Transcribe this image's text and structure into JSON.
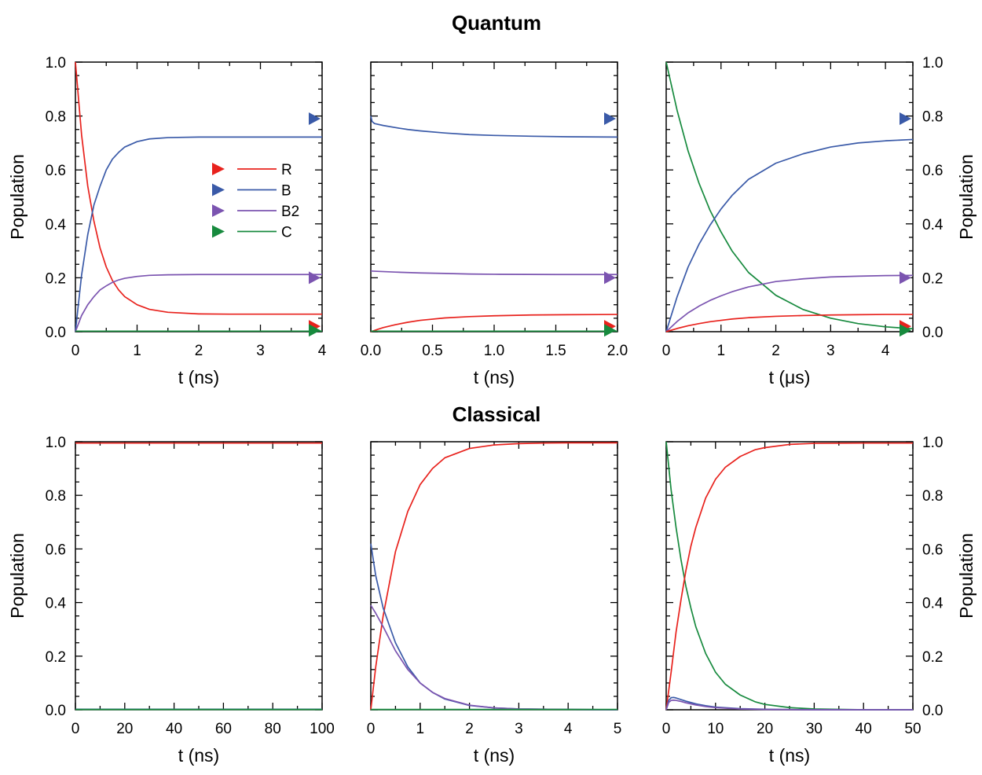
{
  "colors": {
    "R": "#e8221d",
    "B": "#3a5aa8",
    "B2": "#7b54b0",
    "C": "#178a3e",
    "axis": "#000000"
  },
  "quantum": {
    "title": "Quantum"
  },
  "classical": {
    "title": "Classical"
  },
  "legend": [
    {
      "key": "R",
      "label": "R"
    },
    {
      "key": "B",
      "label": "B"
    },
    {
      "key": "B2",
      "label": "B2"
    },
    {
      "key": "C",
      "label": "C"
    }
  ],
  "chart_data": [
    {
      "id": "q1",
      "type": "line",
      "row": "quantum",
      "col": 0,
      "xlabel": "t (ns)",
      "ylabel": "Population",
      "xlim": [
        0,
        4
      ],
      "ylim": [
        0,
        1
      ],
      "xticks": [
        "0",
        "1",
        "2",
        "3",
        "4"
      ],
      "yticks": [
        "0.0",
        "0.2",
        "0.4",
        "0.6",
        "0.8",
        "1.0"
      ],
      "legend": "inside, middle",
      "markers": [
        {
          "key": "B",
          "y": 0.79
        },
        {
          "key": "B2",
          "y": 0.2
        },
        {
          "key": "R",
          "y": 0.02
        },
        {
          "key": "C",
          "y": 0.005
        }
      ],
      "series": [
        {
          "key": "R",
          "x": [
            0,
            0.1,
            0.2,
            0.3,
            0.4,
            0.5,
            0.6,
            0.7,
            0.8,
            1.0,
            1.2,
            1.5,
            2.0,
            2.5,
            3.0,
            4.0
          ],
          "y": [
            1.0,
            0.73,
            0.54,
            0.41,
            0.31,
            0.24,
            0.19,
            0.155,
            0.13,
            0.1,
            0.083,
            0.072,
            0.066,
            0.065,
            0.065,
            0.065
          ]
        },
        {
          "key": "B",
          "x": [
            0,
            0.1,
            0.2,
            0.3,
            0.4,
            0.5,
            0.6,
            0.7,
            0.8,
            1.0,
            1.2,
            1.5,
            2.0,
            2.5,
            3.0,
            4.0
          ],
          "y": [
            0.0,
            0.21,
            0.36,
            0.47,
            0.54,
            0.6,
            0.64,
            0.665,
            0.685,
            0.705,
            0.715,
            0.72,
            0.722,
            0.722,
            0.722,
            0.722
          ]
        },
        {
          "key": "B2",
          "x": [
            0,
            0.1,
            0.2,
            0.3,
            0.4,
            0.5,
            0.6,
            0.7,
            0.8,
            1.0,
            1.2,
            1.5,
            2.0,
            2.5,
            3.0,
            4.0
          ],
          "y": [
            0.0,
            0.06,
            0.1,
            0.13,
            0.155,
            0.17,
            0.183,
            0.192,
            0.198,
            0.205,
            0.209,
            0.211,
            0.212,
            0.212,
            0.212,
            0.212
          ]
        },
        {
          "key": "C",
          "x": [
            0,
            4
          ],
          "y": [
            0.002,
            0.002
          ]
        }
      ]
    },
    {
      "id": "q2",
      "type": "line",
      "row": "quantum",
      "col": 1,
      "xlabel": "t (ns)",
      "ylabel": "",
      "xlim": [
        0,
        2
      ],
      "ylim": [
        0,
        1
      ],
      "xticks": [
        "0.0",
        "0.5",
        "1.0",
        "1.5",
        "2.0"
      ],
      "yticks": [],
      "markers": [
        {
          "key": "B",
          "y": 0.79
        },
        {
          "key": "B2",
          "y": 0.2
        },
        {
          "key": "R",
          "y": 0.02
        },
        {
          "key": "C",
          "y": 0.005
        }
      ],
      "series": [
        {
          "key": "R",
          "x": [
            0,
            0.05,
            0.1,
            0.2,
            0.3,
            0.4,
            0.6,
            0.8,
            1.0,
            1.3,
            1.6,
            2.0
          ],
          "y": [
            0.0,
            0.008,
            0.015,
            0.026,
            0.035,
            0.042,
            0.051,
            0.056,
            0.059,
            0.062,
            0.063,
            0.064
          ]
        },
        {
          "key": "B",
          "x": [
            0,
            0.01,
            0.03,
            0.1,
            0.2,
            0.3,
            0.4,
            0.6,
            0.8,
            1.0,
            1.3,
            1.6,
            2.0
          ],
          "y": [
            0.8,
            0.78,
            0.772,
            0.765,
            0.757,
            0.75,
            0.745,
            0.737,
            0.731,
            0.728,
            0.725,
            0.723,
            0.722
          ]
        },
        {
          "key": "B2",
          "x": [
            0,
            0.05,
            0.2,
            0.4,
            0.6,
            0.8,
            1.0,
            1.5,
            2.0
          ],
          "y": [
            0.225,
            0.224,
            0.221,
            0.218,
            0.216,
            0.214,
            0.213,
            0.212,
            0.212
          ]
        },
        {
          "key": "C",
          "x": [
            0,
            2
          ],
          "y": [
            0.002,
            0.002
          ]
        }
      ]
    },
    {
      "id": "q3",
      "type": "line",
      "row": "quantum",
      "col": 2,
      "xlabel": "t (μs)",
      "ylabel": "Population",
      "xlim": [
        0,
        4.5
      ],
      "ylim": [
        0,
        1
      ],
      "xticks": [
        "0",
        "1",
        "2",
        "3",
        "4"
      ],
      "yticks": [
        "0.0",
        "0.2",
        "0.4",
        "0.6",
        "0.8",
        "1.0"
      ],
      "markers": [
        {
          "key": "B",
          "y": 0.79
        },
        {
          "key": "B2",
          "y": 0.2
        },
        {
          "key": "R",
          "y": 0.02
        },
        {
          "key": "C",
          "y": 0.005
        }
      ],
      "series": [
        {
          "key": "C",
          "x": [
            0,
            0.2,
            0.4,
            0.6,
            0.8,
            1.0,
            1.2,
            1.5,
            2.0,
            2.5,
            3.0,
            3.5,
            4.0,
            4.5
          ],
          "y": [
            1.0,
            0.82,
            0.67,
            0.55,
            0.45,
            0.37,
            0.3,
            0.22,
            0.135,
            0.082,
            0.05,
            0.03,
            0.018,
            0.011
          ]
        },
        {
          "key": "B",
          "x": [
            0,
            0.2,
            0.4,
            0.6,
            0.8,
            1.0,
            1.2,
            1.5,
            2.0,
            2.5,
            3.0,
            3.5,
            4.0,
            4.5
          ],
          "y": [
            0.0,
            0.13,
            0.24,
            0.325,
            0.395,
            0.455,
            0.505,
            0.565,
            0.625,
            0.66,
            0.685,
            0.7,
            0.708,
            0.713
          ]
        },
        {
          "key": "B2",
          "x": [
            0,
            0.2,
            0.4,
            0.6,
            0.8,
            1.0,
            1.2,
            1.5,
            2.0,
            2.5,
            3.0,
            3.5,
            4.0,
            4.5
          ],
          "y": [
            0.0,
            0.038,
            0.07,
            0.095,
            0.116,
            0.133,
            0.148,
            0.166,
            0.186,
            0.196,
            0.203,
            0.206,
            0.208,
            0.209
          ]
        },
        {
          "key": "R",
          "x": [
            0,
            0.2,
            0.4,
            0.6,
            0.8,
            1.0,
            1.2,
            1.5,
            2.0,
            2.5,
            3.0,
            3.5,
            4.0,
            4.5
          ],
          "y": [
            0.0,
            0.012,
            0.022,
            0.03,
            0.037,
            0.042,
            0.047,
            0.052,
            0.057,
            0.06,
            0.062,
            0.063,
            0.064,
            0.064
          ]
        }
      ]
    },
    {
      "id": "c1",
      "type": "line",
      "row": "classical",
      "col": 0,
      "xlabel": "t (ns)",
      "ylabel": "Population",
      "xlim": [
        0,
        100
      ],
      "ylim": [
        0,
        1
      ],
      "xticks": [
        "0",
        "20",
        "40",
        "60",
        "80",
        "100"
      ],
      "yticks": [
        "0.0",
        "0.2",
        "0.4",
        "0.6",
        "0.8",
        "1.0"
      ],
      "series": [
        {
          "key": "R",
          "x": [
            0,
            100
          ],
          "y": [
            0.995,
            0.995
          ]
        },
        {
          "key": "B",
          "x": [
            0,
            100
          ],
          "y": [
            0.002,
            0.002
          ]
        },
        {
          "key": "C",
          "x": [
            0,
            100
          ],
          "y": [
            0.001,
            0.001
          ]
        }
      ]
    },
    {
      "id": "c2",
      "type": "line",
      "row": "classical",
      "col": 1,
      "xlabel": "t (ns)",
      "ylabel": "",
      "xlim": [
        0,
        5
      ],
      "ylim": [
        0,
        1
      ],
      "xticks": [
        "0",
        "1",
        "2",
        "3",
        "4",
        "5"
      ],
      "yticks": [],
      "series": [
        {
          "key": "R",
          "x": [
            0,
            0.1,
            0.25,
            0.5,
            0.75,
            1.0,
            1.25,
            1.5,
            2.0,
            2.5,
            3.0,
            3.5,
            4.0,
            5.0
          ],
          "y": [
            0.0,
            0.16,
            0.35,
            0.59,
            0.74,
            0.84,
            0.9,
            0.94,
            0.975,
            0.988,
            0.993,
            0.995,
            0.996,
            0.996
          ]
        },
        {
          "key": "B",
          "x": [
            0,
            0.1,
            0.25,
            0.5,
            0.75,
            1.0,
            1.25,
            1.5,
            2.0,
            2.5,
            3.0,
            4.0,
            5.0
          ],
          "y": [
            0.62,
            0.5,
            0.38,
            0.25,
            0.16,
            0.1,
            0.065,
            0.04,
            0.016,
            0.007,
            0.003,
            0.001,
            0.0
          ]
        },
        {
          "key": "B2",
          "x": [
            0,
            0.1,
            0.25,
            0.5,
            0.75,
            1.0,
            1.25,
            1.5,
            2.0,
            2.5,
            3.0,
            4.0,
            5.0
          ],
          "y": [
            0.39,
            0.36,
            0.31,
            0.22,
            0.15,
            0.1,
            0.065,
            0.042,
            0.017,
            0.007,
            0.003,
            0.001,
            0.0
          ]
        },
        {
          "key": "C",
          "x": [
            0,
            5
          ],
          "y": [
            0.001,
            0.001
          ]
        }
      ]
    },
    {
      "id": "c3",
      "type": "line",
      "row": "classical",
      "col": 2,
      "xlabel": "t (ns)",
      "ylabel": "Population",
      "xlim": [
        0,
        50
      ],
      "ylim": [
        0,
        1
      ],
      "xticks": [
        "0",
        "10",
        "20",
        "30",
        "40",
        "50"
      ],
      "yticks": [
        "0.0",
        "0.2",
        "0.4",
        "0.6",
        "0.8",
        "1.0"
      ],
      "series": [
        {
          "key": "C",
          "x": [
            0,
            1,
            2,
            3,
            4,
            5,
            6,
            8,
            10,
            12,
            15,
            18,
            20,
            25,
            30,
            40,
            50
          ],
          "y": [
            1.0,
            0.82,
            0.68,
            0.56,
            0.46,
            0.38,
            0.31,
            0.21,
            0.14,
            0.095,
            0.055,
            0.03,
            0.02,
            0.008,
            0.003,
            0.0,
            0.0
          ]
        },
        {
          "key": "R",
          "x": [
            0,
            1,
            2,
            3,
            4,
            5,
            6,
            8,
            10,
            12,
            15,
            18,
            20,
            25,
            30,
            40,
            50
          ],
          "y": [
            0.0,
            0.14,
            0.29,
            0.41,
            0.52,
            0.61,
            0.68,
            0.79,
            0.86,
            0.905,
            0.945,
            0.97,
            0.978,
            0.99,
            0.994,
            0.995,
            0.995
          ]
        },
        {
          "key": "B",
          "x": [
            0,
            0.5,
            1,
            1.5,
            2,
            3,
            4,
            6,
            8,
            10,
            15,
            20,
            30,
            50
          ],
          "y": [
            0.0,
            0.035,
            0.045,
            0.046,
            0.044,
            0.038,
            0.032,
            0.022,
            0.015,
            0.01,
            0.004,
            0.002,
            0.0,
            0.0
          ]
        },
        {
          "key": "B2",
          "x": [
            0,
            0.5,
            1,
            1.5,
            2,
            3,
            4,
            6,
            8,
            10,
            15,
            20,
            30,
            50
          ],
          "y": [
            0.0,
            0.027,
            0.035,
            0.036,
            0.035,
            0.031,
            0.026,
            0.018,
            0.012,
            0.008,
            0.003,
            0.001,
            0.0,
            0.0
          ]
        }
      ]
    }
  ]
}
